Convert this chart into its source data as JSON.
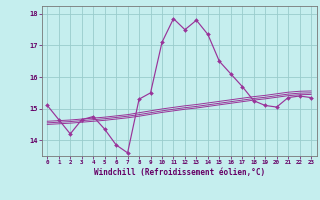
{
  "xlabel": "Windchill (Refroidissement éolien,°C)",
  "bg_color": "#c5eeee",
  "line_color": "#993399",
  "grid_color": "#99cccc",
  "x_hours": [
    0,
    1,
    2,
    3,
    4,
    5,
    6,
    7,
    8,
    9,
    10,
    11,
    12,
    13,
    14,
    15,
    16,
    17,
    18,
    19,
    20,
    21,
    22,
    23
  ],
  "main_curve": [
    15.1,
    14.65,
    14.2,
    14.65,
    14.75,
    14.35,
    13.85,
    13.6,
    15.3,
    15.5,
    17.1,
    17.85,
    17.5,
    17.8,
    17.35,
    16.5,
    16.1,
    15.7,
    15.25,
    15.1,
    15.05,
    15.35,
    15.4,
    15.35
  ],
  "line2": [
    14.5,
    14.52,
    14.54,
    14.57,
    14.6,
    14.63,
    14.67,
    14.71,
    14.76,
    14.82,
    14.88,
    14.93,
    14.98,
    15.02,
    15.07,
    15.12,
    15.17,
    15.22,
    15.27,
    15.31,
    15.36,
    15.41,
    15.44,
    15.45
  ],
  "line3": [
    14.55,
    14.57,
    14.59,
    14.62,
    14.65,
    14.68,
    14.72,
    14.76,
    14.81,
    14.87,
    14.93,
    14.98,
    15.03,
    15.07,
    15.12,
    15.17,
    15.22,
    15.27,
    15.32,
    15.36,
    15.41,
    15.46,
    15.49,
    15.5
  ],
  "line4": [
    14.6,
    14.62,
    14.64,
    14.67,
    14.7,
    14.73,
    14.77,
    14.81,
    14.87,
    14.93,
    14.99,
    15.04,
    15.09,
    15.13,
    15.18,
    15.23,
    15.28,
    15.33,
    15.38,
    15.42,
    15.47,
    15.52,
    15.55,
    15.56
  ],
  "ylim_min": 13.5,
  "ylim_max": 18.25,
  "yticks": [
    14,
    15,
    16,
    17,
    18
  ],
  "tick_color": "#660066",
  "label_color": "#660066"
}
